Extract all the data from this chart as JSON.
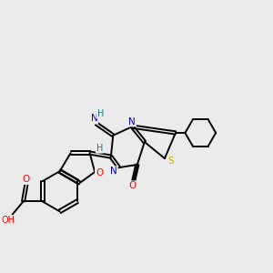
{
  "background_color": "#ebebeb",
  "bond_color": "#000000",
  "atom_colors": {
    "O": "#ff0000",
    "N": "#0000cd",
    "S": "#ccaa00",
    "H": "#008080",
    "C": "#000000"
  },
  "figsize": [
    3.0,
    3.0
  ],
  "dpi": 100
}
